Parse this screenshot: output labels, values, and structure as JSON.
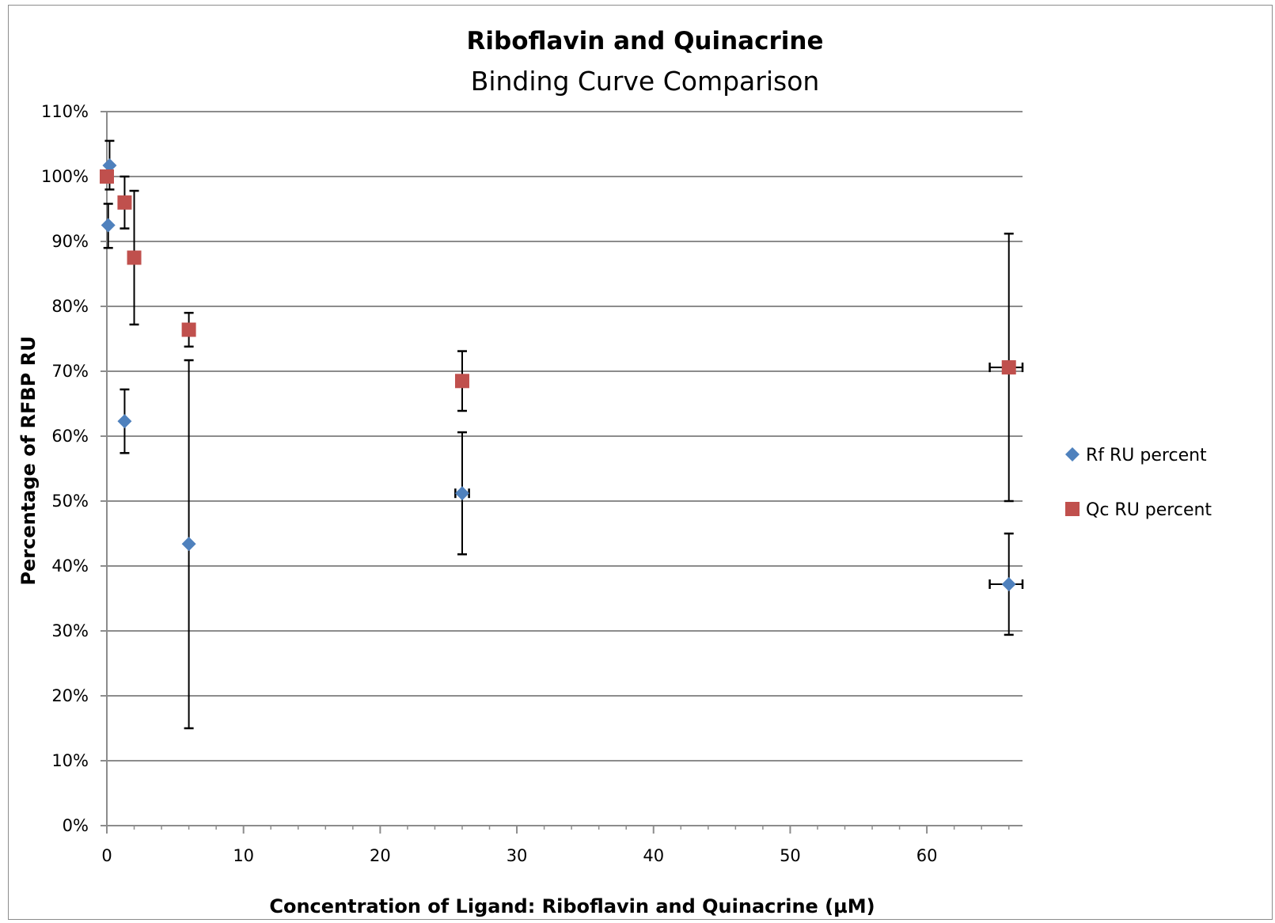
{
  "chart_data": {
    "type": "scatter",
    "title": "Riboflavin and Quinacrine",
    "subtitle": "Binding Curve Comparison",
    "xlabel": "Concentration of Ligand: Riboflavin and Quinacrine (µM)",
    "ylabel": "Percentage of RFBP RU",
    "xlim": [
      0,
      67
    ],
    "ylim": [
      0,
      1.1
    ],
    "x_ticks": [
      0,
      10,
      20,
      30,
      40,
      50,
      60
    ],
    "x_tick_labels": [
      "0",
      "10",
      "20",
      "30",
      "40",
      "50",
      "60"
    ],
    "y_ticks": [
      0,
      0.1,
      0.2,
      0.3,
      0.4,
      0.5,
      0.6,
      0.7,
      0.8,
      0.9,
      1.0,
      1.1
    ],
    "y_tick_labels": [
      "0%",
      "10%",
      "20%",
      "30%",
      "40%",
      "50%",
      "60%",
      "70%",
      "80%",
      "90%",
      "100%",
      "110%"
    ],
    "grid": true,
    "legend_position": "right",
    "series": [
      {
        "name": "Rf RU percent",
        "marker": "diamond",
        "color": "#4f81bd",
        "points": [
          {
            "x": 0.2,
            "y": 1.017,
            "y_low": 0.98,
            "y_high": 1.055
          },
          {
            "x": 0.1,
            "y": 0.925,
            "y_low": 0.89,
            "y_high": 0.958
          },
          {
            "x": 1.3,
            "y": 0.623,
            "y_low": 0.574,
            "y_high": 0.672
          },
          {
            "x": 6.0,
            "y": 0.434,
            "y_low": 0.15,
            "y_high": 0.717
          },
          {
            "x": 26.0,
            "y": 0.512,
            "y_low": 0.418,
            "y_high": 0.606,
            "x_low": 25.5,
            "x_high": 26.5
          },
          {
            "x": 66.0,
            "y": 0.372,
            "y_low": 0.294,
            "y_high": 0.45,
            "x_low": 64.6,
            "x_high": 67.0
          }
        ]
      },
      {
        "name": "Qc RU percent",
        "marker": "square",
        "color": "#c0504d",
        "points": [
          {
            "x": 0.0,
            "y": 1.0
          },
          {
            "x": 1.3,
            "y": 0.96,
            "y_low": 0.92,
            "y_high": 1.0
          },
          {
            "x": 2.0,
            "y": 0.875,
            "y_low": 0.772,
            "y_high": 0.978
          },
          {
            "x": 6.0,
            "y": 0.764,
            "y_low": 0.738,
            "y_high": 0.79
          },
          {
            "x": 26.0,
            "y": 0.685,
            "y_low": 0.639,
            "y_high": 0.731
          },
          {
            "x": 66.0,
            "y": 0.706,
            "y_low": 0.5,
            "y_high": 0.912,
            "x_low": 64.6,
            "x_high": 67.0
          }
        ]
      }
    ]
  }
}
